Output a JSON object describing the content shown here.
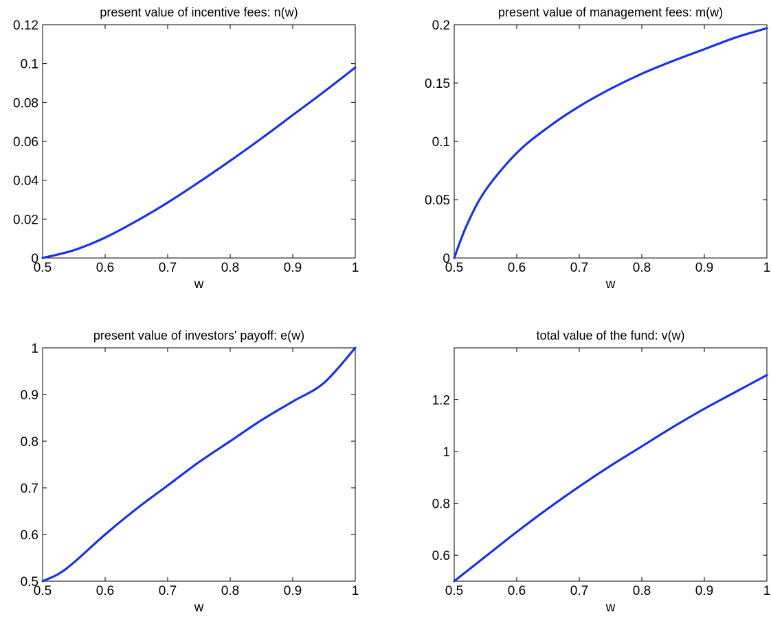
{
  "chart_data": [
    {
      "type": "line",
      "title": "present value of incentive fees: n(w)",
      "xlabel": "w",
      "ylabel": "",
      "xlim": [
        0.5,
        1
      ],
      "ylim": [
        0,
        0.12
      ],
      "xticks": [
        0.5,
        0.6,
        0.7,
        0.8,
        0.9,
        1
      ],
      "xtick_labels": [
        "0.5",
        "0.6",
        "0.7",
        "0.8",
        "0.9",
        "1"
      ],
      "yticks": [
        0,
        0.02,
        0.04,
        0.06,
        0.08,
        0.1,
        0.12
      ],
      "ytick_labels": [
        "0",
        "0.02",
        "0.04",
        "0.06",
        "0.08",
        "0.1",
        "0.12"
      ],
      "grid": false,
      "series": [
        {
          "color": "#1a32e6",
          "x": [
            0.5,
            0.55,
            0.6,
            0.65,
            0.7,
            0.75,
            0.8,
            0.85,
            0.9,
            0.95,
            1.0
          ],
          "y": [
            0,
            0.004,
            0.0105,
            0.019,
            0.0285,
            0.039,
            0.05,
            0.0615,
            0.0735,
            0.0855,
            0.098
          ]
        }
      ]
    },
    {
      "type": "line",
      "title": "present value of management fees: m(w)",
      "xlabel": "w",
      "ylabel": "",
      "xlim": [
        0.5,
        1
      ],
      "ylim": [
        0,
        0.2
      ],
      "xticks": [
        0.5,
        0.6,
        0.7,
        0.8,
        0.9,
        1
      ],
      "xtick_labels": [
        "0.5",
        "0.6",
        "0.7",
        "0.8",
        "0.9",
        "1"
      ],
      "yticks": [
        0,
        0.05,
        0.1,
        0.15,
        0.2
      ],
      "ytick_labels": [
        "0",
        "0.05",
        "0.1",
        "0.15",
        "0.2"
      ],
      "grid": false,
      "series": [
        {
          "color": "#1a32e6",
          "x": [
            0.5,
            0.52,
            0.55,
            0.6,
            0.65,
            0.7,
            0.75,
            0.8,
            0.85,
            0.9,
            0.95,
            1.0
          ],
          "y": [
            0,
            0.028,
            0.058,
            0.09,
            0.112,
            0.13,
            0.145,
            0.158,
            0.169,
            0.179,
            0.189,
            0.197
          ]
        }
      ]
    },
    {
      "type": "line",
      "title": "present value of investors' payoff: e(w)",
      "xlabel": "w",
      "ylabel": "",
      "xlim": [
        0.5,
        1
      ],
      "ylim": [
        0.5,
        1
      ],
      "xticks": [
        0.5,
        0.6,
        0.7,
        0.8,
        0.9,
        1
      ],
      "xtick_labels": [
        "0.5",
        "0.6",
        "0.7",
        "0.8",
        "0.9",
        "1"
      ],
      "yticks": [
        0.5,
        0.6,
        0.7,
        0.8,
        0.9,
        1
      ],
      "ytick_labels": [
        "0.5",
        "0.6",
        "0.7",
        "0.8",
        "0.9",
        "1"
      ],
      "grid": false,
      "series": [
        {
          "color": "#1a32e6",
          "x": [
            0.5,
            0.525,
            0.55,
            0.6,
            0.65,
            0.7,
            0.75,
            0.8,
            0.85,
            0.9,
            0.95,
            1.0
          ],
          "y": [
            0.5,
            0.515,
            0.54,
            0.6,
            0.655,
            0.705,
            0.755,
            0.8,
            0.845,
            0.885,
            0.925,
            1.0
          ]
        }
      ]
    },
    {
      "type": "line",
      "title": "total value of the fund: v(w)",
      "xlabel": "w",
      "ylabel": "",
      "xlim": [
        0.5,
        1
      ],
      "ylim": [
        0.5,
        1.4
      ],
      "xticks": [
        0.5,
        0.6,
        0.7,
        0.8,
        0.9,
        1
      ],
      "xtick_labels": [
        "0.5",
        "0.6",
        "0.7",
        "0.8",
        "0.9",
        "1"
      ],
      "yticks": [
        0.6,
        0.8,
        1,
        1.2
      ],
      "ytick_labels": [
        "0.6",
        "0.8",
        "1",
        "1.2"
      ],
      "grid": false,
      "series": [
        {
          "color": "#1a32e6",
          "x": [
            0.5,
            0.55,
            0.6,
            0.65,
            0.7,
            0.75,
            0.8,
            0.85,
            0.9,
            0.95,
            1.0
          ],
          "y": [
            0.5,
            0.595,
            0.69,
            0.78,
            0.865,
            0.945,
            1.02,
            1.095,
            1.165,
            1.23,
            1.295
          ]
        }
      ]
    }
  ]
}
